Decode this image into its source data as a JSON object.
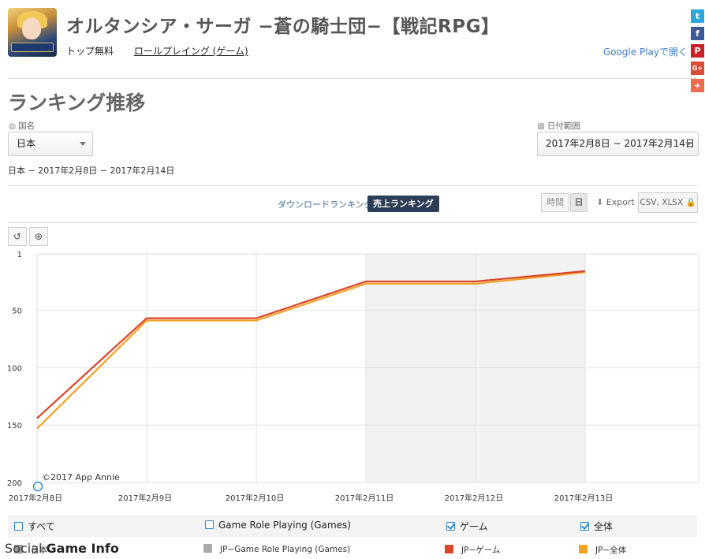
{
  "app": {
    "title": "オルタンシア・サーガ −蒼の騎士団−【戦記RPG】",
    "category": "トップ無料",
    "genre": "ロールプレイング (ゲーム)",
    "store_link": "Google Playで開く"
  },
  "social": [
    {
      "icon": "twitter-icon",
      "glyph": "t",
      "color": "#2aa6e0"
    },
    {
      "icon": "facebook-icon",
      "glyph": "f",
      "color": "#3b5a9a"
    },
    {
      "icon": "pinterest-icon",
      "glyph": "P",
      "color": "#cb2027"
    },
    {
      "icon": "google-plus-icon",
      "glyph": "G+",
      "color": "#dd4b39"
    },
    {
      "icon": "plus-icon",
      "glyph": "+",
      "color": "#f36b4e"
    }
  ],
  "section_title": "ランキング推移",
  "filters": {
    "country_label": "国名",
    "country_value": "日本",
    "date_label": "日付範囲",
    "date_value": "2017年2月8日 − 2017年2月14日",
    "summary": "日本 − 2017年2月8日 − 2017年2月14日"
  },
  "tabs": {
    "download": "ダウンロードランキング",
    "sales": "売上ランキング"
  },
  "granularity": {
    "hour": "時間",
    "day": "日"
  },
  "export": {
    "label": "Export",
    "formats": "CSV, XLSX"
  },
  "copyright": "©2017 App Annie",
  "chart_data": {
    "type": "line",
    "x": [
      "2017年2月8日",
      "2017年2月9日",
      "2017年2月10日",
      "2017年2月11日",
      "2017年2月12日",
      "2017年2月13日"
    ],
    "y_ticks": [
      1,
      50,
      100,
      150,
      200
    ],
    "ylim": [
      1,
      200
    ],
    "y_inverted": true,
    "shaded_range": [
      "2017年2月11日",
      "2017年2月13日"
    ],
    "series": [
      {
        "name": "JP−ゲーム",
        "color": "#d9442a",
        "values": [
          144,
          57,
          57,
          25,
          25,
          16
        ]
      },
      {
        "name": "JP−全体",
        "color": "#f4a024",
        "values": [
          153,
          59,
          59,
          27,
          27,
          17
        ]
      }
    ]
  },
  "legend": {
    "checkboxes": [
      {
        "label": "すべて",
        "checked": false
      },
      {
        "label": "Game Role Playing (Games)",
        "checked": false
      },
      {
        "label": "ゲーム",
        "checked": true
      },
      {
        "label": "全体",
        "checked": true
      }
    ],
    "series": [
      {
        "label": "日本",
        "color": "#999999"
      },
      {
        "label": "JP−Game Role Playing (Games)",
        "color": "#aaaaaa"
      },
      {
        "label": "JP−ゲーム",
        "color": "#d9442a"
      },
      {
        "label": "JP−全体",
        "color": "#f4a024"
      }
    ]
  },
  "watermark": {
    "left": "Social",
    "right": "Game Info"
  }
}
